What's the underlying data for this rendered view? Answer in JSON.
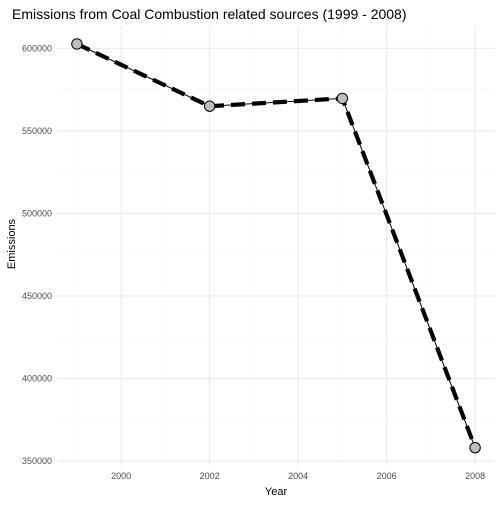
{
  "chart_data": {
    "type": "line",
    "title": "Emissions from Coal Combustion related sources (1999 - 2008)",
    "xlabel": "Year",
    "ylabel": "Emissions",
    "x": [
      1999,
      2002,
      2005,
      2008
    ],
    "series": [
      {
        "values": [
          602624,
          564940,
          569654,
          358084
        ]
      }
    ],
    "xlim": [
      1998.55,
      2008.45
    ],
    "ylim": [
      347000,
      613500
    ],
    "x_ticks": [
      2000,
      2002,
      2004,
      2006,
      2008
    ],
    "y_ticks": [
      350000,
      400000,
      450000,
      500000,
      550000,
      600000
    ],
    "x_tick_labels": [
      "2000",
      "2002",
      "2004",
      "2006",
      "2008"
    ],
    "y_tick_labels": [
      "350000",
      "400000",
      "450000",
      "500000",
      "550000",
      "600000"
    ],
    "grid": true,
    "legend": "none",
    "colors": {
      "line": "#000000",
      "point_fill": "#bebebe",
      "point_stroke": "#000000",
      "grid_major": "#ebebeb",
      "grid_minor": "#f5f5f5",
      "tick_label": "#4d4d4d"
    }
  }
}
